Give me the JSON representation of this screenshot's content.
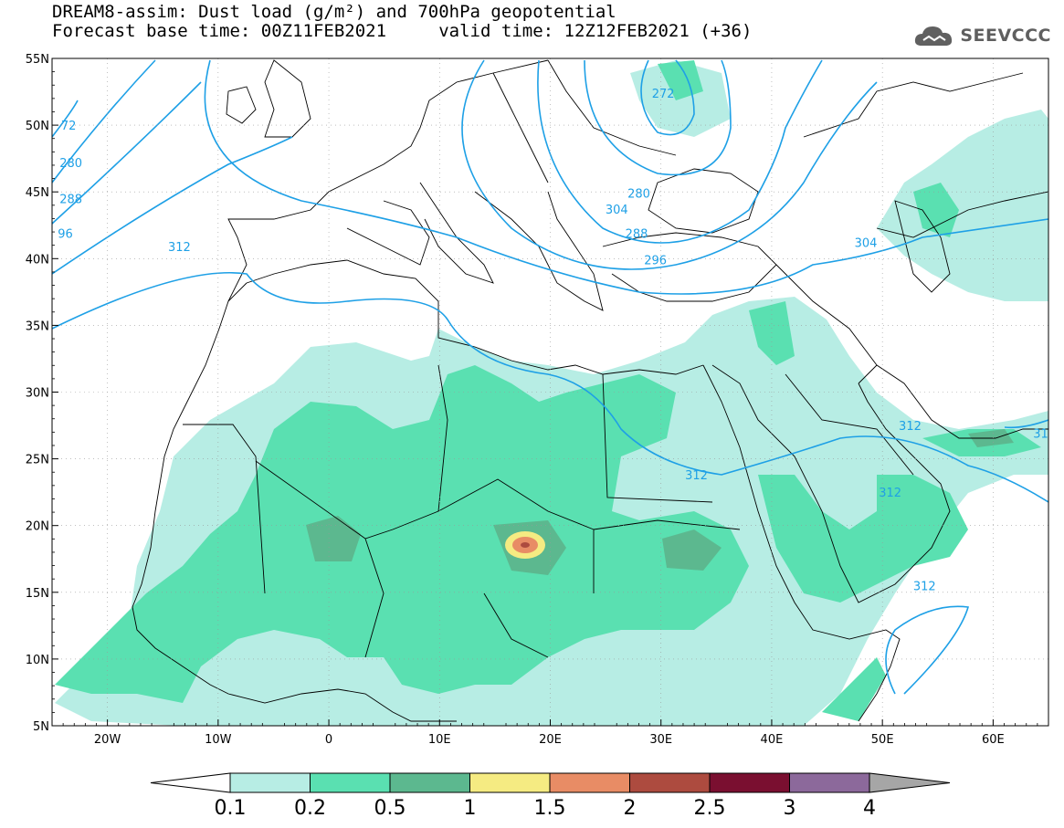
{
  "title": {
    "line1": "DREAM8-assim: Dust load (g/m²) and 700hPa geopotential",
    "line2": "Forecast base time: 00Z11FEB2021     valid time: 12Z12FEB2021 (+36)"
  },
  "logo": {
    "text": "SEEVCCC",
    "icon": "cloud-icon",
    "color": "#606060"
  },
  "map": {
    "lon_range": [
      -25,
      65
    ],
    "lat_range": [
      5,
      55
    ],
    "lat_ticks": [
      {
        "value": 55,
        "label": "55N"
      },
      {
        "value": 50,
        "label": "50N"
      },
      {
        "value": 45,
        "label": "45N"
      },
      {
        "value": 40,
        "label": "40N"
      },
      {
        "value": 35,
        "label": "35N"
      },
      {
        "value": 30,
        "label": "30N"
      },
      {
        "value": 25,
        "label": "25N"
      },
      {
        "value": 20,
        "label": "20N"
      },
      {
        "value": 15,
        "label": "15N"
      },
      {
        "value": 10,
        "label": "10N"
      },
      {
        "value": 5,
        "label": "5N"
      }
    ],
    "lon_ticks": [
      {
        "value": -20,
        "label": "20W"
      },
      {
        "value": -10,
        "label": "10W"
      },
      {
        "value": 0,
        "label": "0"
      },
      {
        "value": 10,
        "label": "10E"
      },
      {
        "value": 20,
        "label": "20E"
      },
      {
        "value": 30,
        "label": "30E"
      },
      {
        "value": 40,
        "label": "40E"
      },
      {
        "value": 50,
        "label": "50E"
      },
      {
        "value": 60,
        "label": "60E"
      }
    ],
    "gridlines": true,
    "contour_color": "#1ea0e6",
    "contour_labels": [
      {
        "text": "272",
        "lon": 30.2,
        "lat": 52.2
      },
      {
        "text": "280",
        "lon": 28.0,
        "lat": 44.7
      },
      {
        "text": "288",
        "lon": 27.8,
        "lat": 41.7
      },
      {
        "text": "296",
        "lon": 29.5,
        "lat": 39.7
      },
      {
        "text": "304",
        "lon": 26.0,
        "lat": 43.5
      },
      {
        "text": "304",
        "lon": 48.5,
        "lat": 41.0
      },
      {
        "text": "312",
        "lon": -13.5,
        "lat": 40.7
      },
      {
        "text": "312",
        "lon": 33.2,
        "lat": 23.6
      },
      {
        "text": "312",
        "lon": 52.5,
        "lat": 27.3
      },
      {
        "text": "312",
        "lon": 50.7,
        "lat": 22.3
      },
      {
        "text": "312",
        "lon": 53.8,
        "lat": 15.3
      },
      {
        "text": "31",
        "lon": 64.3,
        "lat": 26.7
      },
      {
        "text": "72",
        "lon": -23.5,
        "lat": 49.8
      },
      {
        "text": "280",
        "lon": -23.3,
        "lat": 47.0
      },
      {
        "text": "288",
        "lon": -23.3,
        "lat": 44.3
      },
      {
        "text": "96",
        "lon": -23.8,
        "lat": 41.7
      }
    ],
    "dust_fill_levels": [
      "#b3ece2",
      "#59dfb0",
      "#55b389",
      "#f4e97a",
      "#e78b63"
    ]
  },
  "colorbar": {
    "levels": [
      "0.1",
      "0.2",
      "0.5",
      "1",
      "1.5",
      "2",
      "2.5",
      "3",
      "4"
    ],
    "colors": [
      "#b7ede4",
      "#5ae0b1",
      "#5cb88f",
      "#f5eb82",
      "#e88c65",
      "#ad4b3f",
      "#7a0f30",
      "#8c699b"
    ],
    "under_color": "#ffffff",
    "over_color": "#a6a6a6"
  }
}
